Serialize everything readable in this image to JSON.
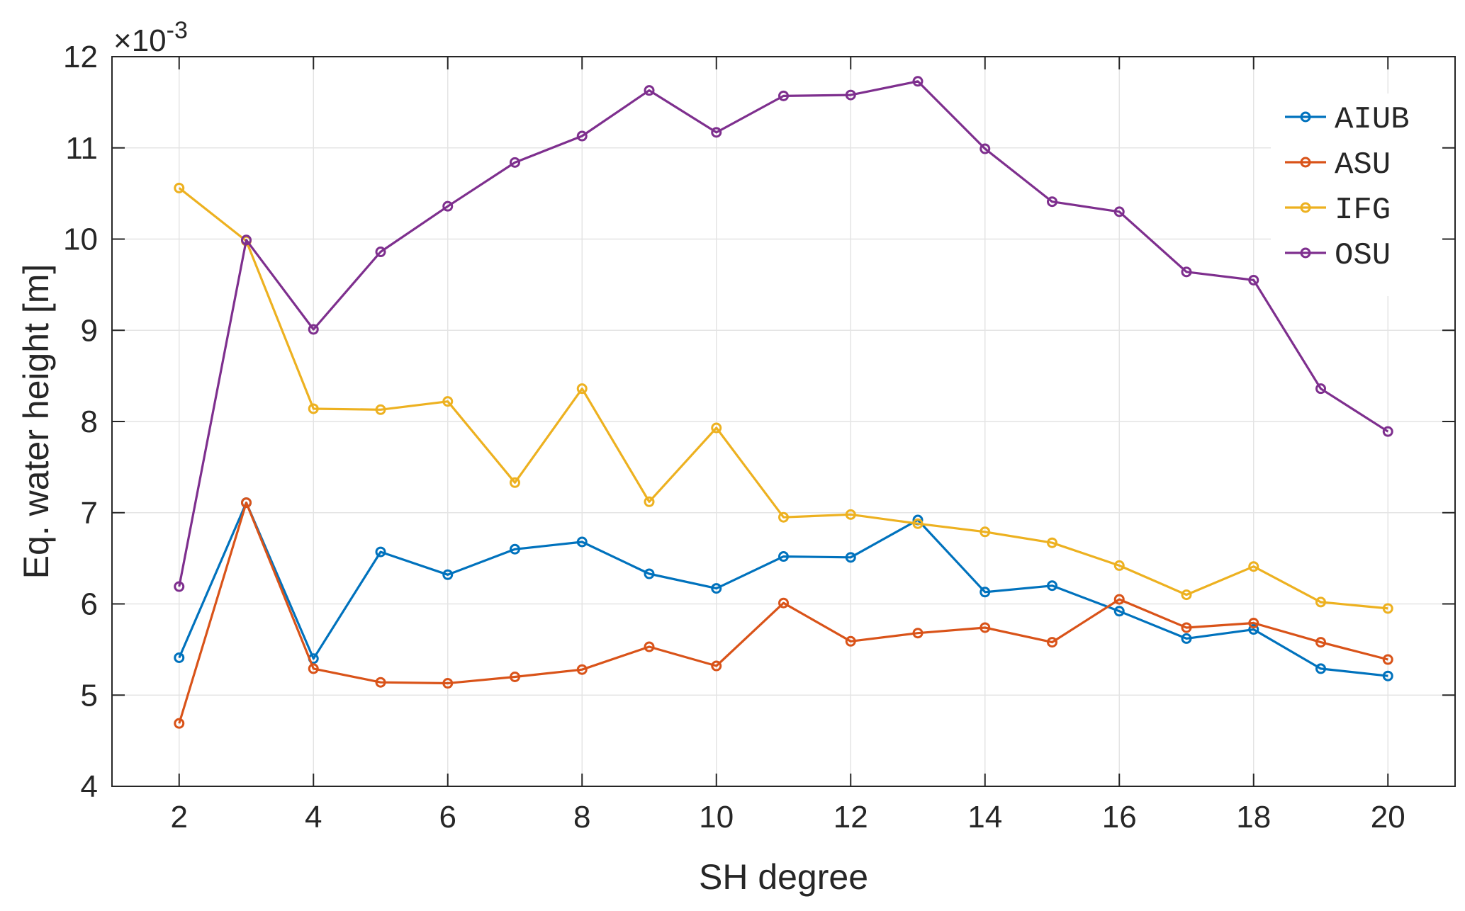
{
  "chart_data": {
    "type": "line",
    "title": "",
    "xlabel": "SH degree",
    "ylabel": "Eq. water height [m]",
    "y_exponent_label": "×10",
    "y_exponent_power": "-3",
    "xlim": [
      1,
      21
    ],
    "ylim": [
      4,
      12
    ],
    "x_ticks": [
      2,
      4,
      6,
      8,
      10,
      12,
      14,
      16,
      18,
      20
    ],
    "y_ticks": [
      4,
      5,
      6,
      7,
      8,
      9,
      10,
      11,
      12
    ],
    "grid": true,
    "legend_position": "top-right",
    "x": [
      2,
      3,
      4,
      5,
      6,
      7,
      8,
      9,
      10,
      11,
      12,
      13,
      14,
      15,
      16,
      17,
      18,
      19,
      20
    ],
    "series": [
      {
        "name": "AIUB",
        "color": "#0072BD",
        "values": [
          5.41,
          7.11,
          5.4,
          6.57,
          6.32,
          6.6,
          6.68,
          6.33,
          6.17,
          6.52,
          6.51,
          6.92,
          6.13,
          6.2,
          5.92,
          5.62,
          5.72,
          5.29,
          5.21
        ]
      },
      {
        "name": "ASU",
        "color": "#D95319",
        "values": [
          4.69,
          7.11,
          5.29,
          5.14,
          5.13,
          5.2,
          5.28,
          5.53,
          5.32,
          6.01,
          5.59,
          5.68,
          5.74,
          5.58,
          6.05,
          5.74,
          5.79,
          5.58,
          5.39
        ]
      },
      {
        "name": "IFG",
        "color": "#EDB120",
        "values": [
          10.56,
          9.98,
          8.14,
          8.13,
          8.22,
          7.33,
          8.36,
          7.12,
          7.93,
          6.95,
          6.98,
          6.88,
          6.79,
          6.67,
          6.42,
          6.1,
          6.41,
          6.02,
          5.95
        ]
      },
      {
        "name": "OSU",
        "color": "#7E2F8E",
        "values": [
          6.19,
          9.99,
          9.01,
          9.86,
          10.36,
          10.84,
          11.13,
          11.63,
          11.17,
          11.57,
          11.58,
          11.73,
          10.99,
          10.41,
          10.3,
          9.64,
          9.55,
          8.36,
          7.89
        ]
      }
    ]
  }
}
